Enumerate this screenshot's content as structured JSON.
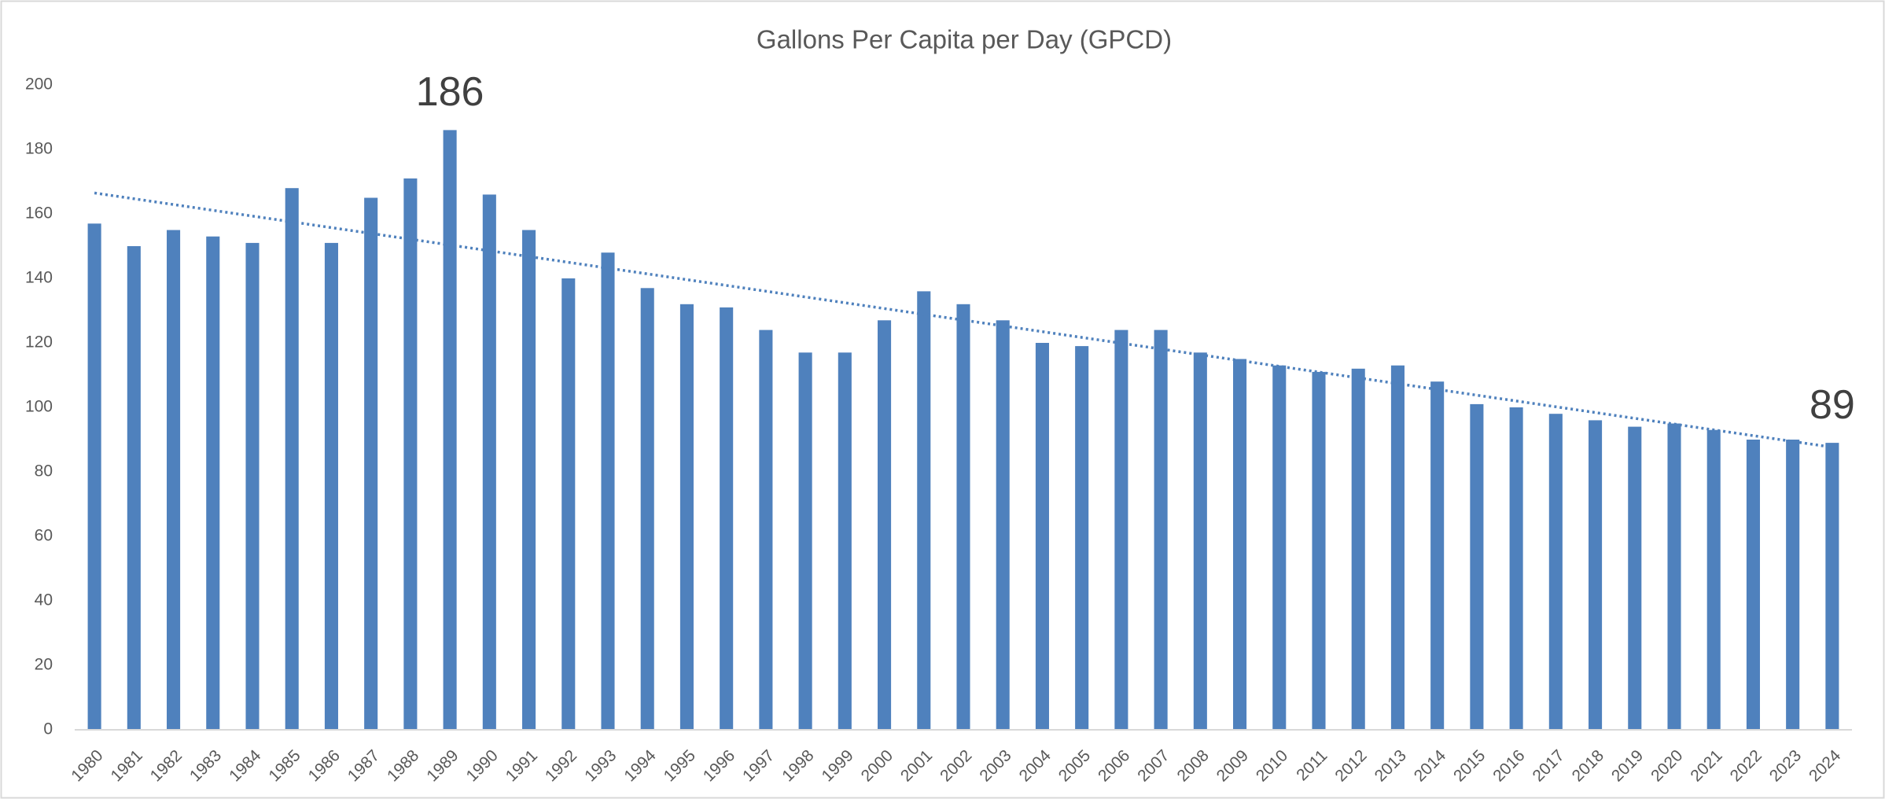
{
  "chart_data": {
    "type": "bar",
    "title": "Gallons Per Capita per Day (GPCD)",
    "categories": [
      "1980",
      "1981",
      "1982",
      "1983",
      "1984",
      "1985",
      "1986",
      "1987",
      "1988",
      "1989",
      "1990",
      "1991",
      "1992",
      "1993",
      "1994",
      "1995",
      "1996",
      "1997",
      "1998",
      "1999",
      "2000",
      "2001",
      "2002",
      "2003",
      "2004",
      "2005",
      "2006",
      "2007",
      "2008",
      "2009",
      "2010",
      "2011",
      "2012",
      "2013",
      "2014",
      "2015",
      "2016",
      "2017",
      "2018",
      "2019",
      "2020",
      "2021",
      "2022",
      "2023",
      "2024"
    ],
    "values": [
      157,
      150,
      155,
      153,
      151,
      168,
      151,
      165,
      171,
      186,
      166,
      155,
      140,
      148,
      137,
      132,
      131,
      124,
      117,
      117,
      127,
      136,
      132,
      127,
      120,
      119,
      124,
      124,
      117,
      115,
      113,
      111,
      112,
      113,
      108,
      101,
      100,
      98,
      96,
      94,
      95,
      93,
      90,
      90,
      89
    ],
    "color": "#4f81bd",
    "ylim": [
      0,
      200
    ],
    "yticks": [
      0,
      20,
      40,
      60,
      80,
      100,
      120,
      140,
      160,
      180,
      200
    ],
    "grid": false,
    "trendline": "linear",
    "annotations": [
      {
        "text": "186",
        "category": "1989"
      },
      {
        "text": "89",
        "category": "2024"
      }
    ]
  }
}
